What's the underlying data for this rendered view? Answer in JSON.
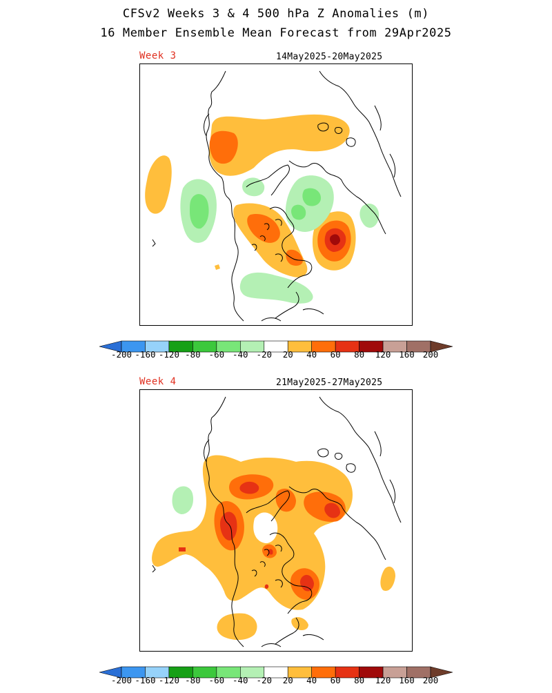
{
  "header": {
    "title_line1": "CFSv2 Weeks 3 & 4 500 hPa Z Anomalies (m)",
    "title_line2": "16 Member Ensemble Mean Forecast from 29Apr2025"
  },
  "panels": [
    {
      "week_label": "Week 3",
      "date_range": "14May2025-20May2025"
    },
    {
      "week_label": "Week 4",
      "date_range": "21May2025-27May2025"
    }
  ],
  "colorbar": {
    "colors": [
      "#2a6fd6",
      "#3c96f0",
      "#96d2fa",
      "#16a016",
      "#3cc83c",
      "#78e678",
      "#b4f0b4",
      "#ffffff",
      "#ffbe3c",
      "#ff6e0a",
      "#e63214",
      "#a00a0a",
      "#c8a096",
      "#a07066",
      "#6e3c2a"
    ],
    "tick_labels": [
      "-200",
      "-160",
      "-120",
      "-80",
      "-60",
      "-40",
      "-20",
      "20",
      "40",
      "60",
      "80",
      "120",
      "160",
      "200"
    ]
  },
  "legend_colors": {
    "neg_20": "#b4f0b4",
    "neg_40": "#78e678",
    "pos_20": "#ffbe3c",
    "pos_40": "#ff6e0a",
    "pos_60": "#e63214",
    "pos_80": "#a00a0a"
  }
}
